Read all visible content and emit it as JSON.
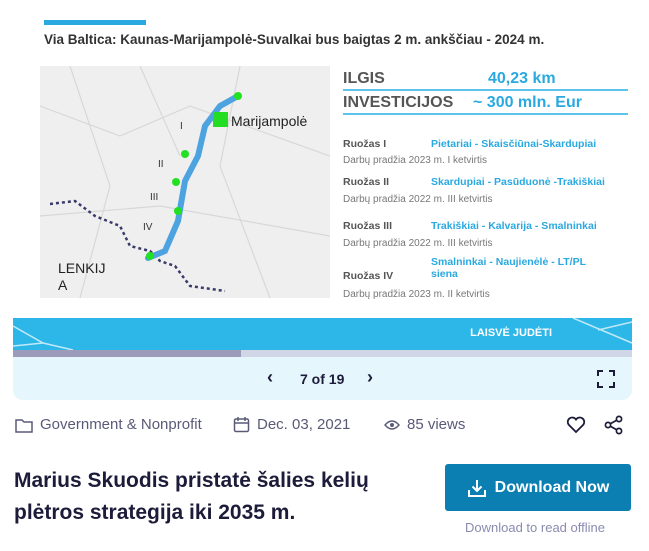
{
  "slide": {
    "title": "Via Baltica: Kaunas-Marijampolė-Suvalkai bus baigtas 2 m. ankščiau - 2024 m.",
    "map": {
      "city": "Marijampolė",
      "country_line1": "LENKIJ",
      "country_line2": "A",
      "section_labels": [
        "I",
        "II",
        "III",
        "IV"
      ]
    },
    "ilgis_label": "ILGIS",
    "ilgis_value": "40,23 km",
    "invest_label": "INVESTICIJOS",
    "invest_value": "~ 300 mln. Eur",
    "sections": [
      {
        "name": "Ruožas I",
        "route": "Pietariai - Skaisčiūnai-Skardupiai",
        "start": "Darbų pradžia 2023 m. I ketvirtis"
      },
      {
        "name": "Ruožas II",
        "route": "Skardupiai - Pasūduonė -Trakiškiai",
        "start": "Darbų pradžia 2022 m. III ketvirtis"
      },
      {
        "name": "Ruožas III",
        "route": "Trakiškiai - Kalvarija - Smalninkai",
        "start": "Darbų pradžia 2022 m. III ketvirtis"
      },
      {
        "name": "Ruožas IV",
        "route": "Smalninkai - Naujienėlė - LT/PL siena",
        "start": "Darbų pradžia 2023 m. II ketvirtis"
      }
    ],
    "banner_text": "LAISVĖ JUDĖTI",
    "accent_color": "#2aa9e0"
  },
  "viewer": {
    "current": 7,
    "total": 19,
    "page_label": "7 of 19",
    "progress_fraction": 0.368
  },
  "meta": {
    "category": "Government & Nonprofit",
    "date": "Dec. 03, 2021",
    "views": "85 views"
  },
  "title": "Marius Skuodis pristatė šalies kelių plėtros strategija iki 2035 m.",
  "download": {
    "label": "Download Now",
    "sub": "Download to read offline",
    "color": "#0b7fb2"
  }
}
